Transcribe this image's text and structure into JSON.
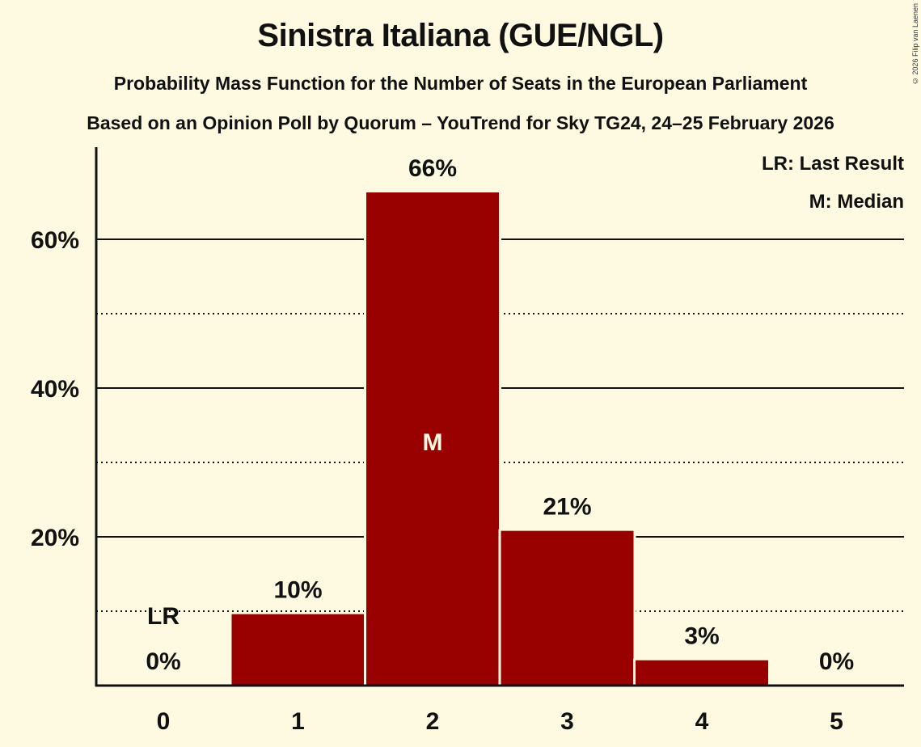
{
  "header": {
    "title": "Sinistra Italiana (GUE/NGL)",
    "subtitle": "Probability Mass Function for the Number of Seats in the European Parliament",
    "source": "Based on an Opinion Poll by Quorum – YouTrend for Sky TG24, 24–25 February 2026",
    "copyright": "© 2026 Filip van Laenen"
  },
  "legend": {
    "lr": "LR: Last Result",
    "m": "M: Median"
  },
  "colors": {
    "background": "#fefae2",
    "bar": "#990000",
    "axis": "#111111"
  },
  "chart_data": {
    "type": "bar",
    "title": "Sinistra Italiana (GUE/NGL)",
    "subtitle": "Probability Mass Function for the Number of Seats in the European Parliament",
    "xlabel": "",
    "ylabel": "",
    "categories": [
      "0",
      "1",
      "2",
      "3",
      "4",
      "5"
    ],
    "values": [
      0,
      9.6,
      66.3,
      20.8,
      3.4,
      0
    ],
    "value_labels": [
      "0%",
      "10%",
      "66%",
      "21%",
      "3%",
      "0%"
    ],
    "ylim": [
      0,
      72
    ],
    "yticks": [
      20,
      40,
      60
    ],
    "ytick_labels": [
      "20%",
      "40%",
      "60%"
    ],
    "minor_gridlines": [
      10,
      30,
      50
    ],
    "grid": true,
    "annotations": [
      {
        "category": "0",
        "label": "LR",
        "meaning": "Last Result"
      },
      {
        "category": "2",
        "label": "M",
        "meaning": "Median"
      }
    ],
    "legend_position": "top-right"
  }
}
